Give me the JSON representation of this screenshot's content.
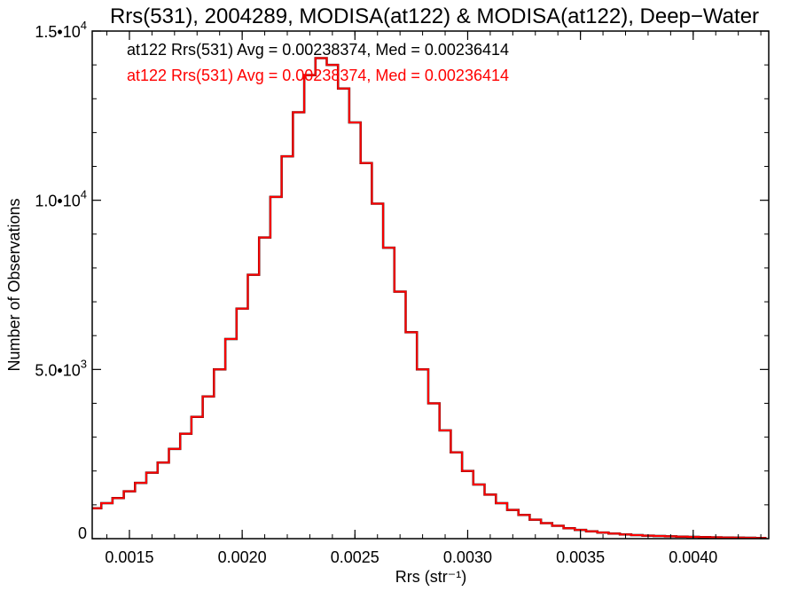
{
  "chart_data": {
    "type": "step",
    "title": "Rrs(531), 2004289, MODISA(at122) & MODISA(at122), Deep−Water",
    "xlabel": "Rrs (str⁻¹)",
    "ylabel": "Number of Observations",
    "xlim": [
      0.001335,
      0.004335
    ],
    "ylim": [
      0,
      15000
    ],
    "grid": false,
    "x_ticks": [
      {
        "value": 0.0015,
        "label": "0.0015"
      },
      {
        "value": 0.002,
        "label": "0.0020"
      },
      {
        "value": 0.0025,
        "label": "0.0025"
      },
      {
        "value": 0.003,
        "label": "0.0030"
      },
      {
        "value": 0.0035,
        "label": "0.0035"
      },
      {
        "value": 0.004,
        "label": "0.0040"
      }
    ],
    "y_ticks": [
      {
        "value": 0,
        "mantissa": "0",
        "exp": ""
      },
      {
        "value": 5000,
        "mantissa": "5.0•10",
        "exp": "3"
      },
      {
        "value": 10000,
        "mantissa": "1.0•10",
        "exp": "4"
      },
      {
        "value": 15000,
        "mantissa": "1.5•10",
        "exp": "4"
      }
    ],
    "annotations": [
      {
        "text": "at122 Rrs(531) Avg = 0.00238374, Med = 0.00236414",
        "color": "#000000"
      },
      {
        "text": "at122 Rrs(531) Avg = 0.00238374, Med = 0.00236414",
        "color": "#ff0000"
      }
    ],
    "series": [
      {
        "color": "#000000",
        "x": [
          0.00135,
          0.0014,
          0.00145,
          0.0015,
          0.00155,
          0.0016,
          0.00165,
          0.0017,
          0.00175,
          0.0018,
          0.00185,
          0.0019,
          0.00195,
          0.002,
          0.00205,
          0.0021,
          0.00215,
          0.0022,
          0.00225,
          0.0023,
          0.00235,
          0.0024,
          0.00245,
          0.0025,
          0.00255,
          0.0026,
          0.00265,
          0.0027,
          0.00275,
          0.0028,
          0.00285,
          0.0029,
          0.00295,
          0.003,
          0.00305,
          0.0031,
          0.00315,
          0.0032,
          0.00325,
          0.0033,
          0.00335,
          0.0034,
          0.00345,
          0.0035,
          0.00355,
          0.0036,
          0.00365,
          0.0037,
          0.00375,
          0.0038,
          0.00385,
          0.0039,
          0.00395,
          0.004,
          0.00405,
          0.0041,
          0.00415,
          0.0042,
          0.00425,
          0.0043
        ],
        "y": [
          900,
          1050,
          1200,
          1400,
          1650,
          1950,
          2250,
          2650,
          3100,
          3600,
          4200,
          5000,
          5900,
          6800,
          7800,
          8900,
          10100,
          11300,
          12600,
          13700,
          14200,
          14000,
          13300,
          12300,
          11100,
          9900,
          8600,
          7300,
          6100,
          5000,
          4000,
          3200,
          2550,
          2000,
          1600,
          1300,
          1050,
          850,
          700,
          560,
          460,
          380,
          310,
          260,
          215,
          180,
          150,
          125,
          105,
          90,
          78,
          68,
          60,
          52,
          45,
          40,
          35,
          30,
          26,
          20
        ]
      },
      {
        "color": "#ff0000",
        "x": [
          0.00135,
          0.0014,
          0.00145,
          0.0015,
          0.00155,
          0.0016,
          0.00165,
          0.0017,
          0.00175,
          0.0018,
          0.00185,
          0.0019,
          0.00195,
          0.002,
          0.00205,
          0.0021,
          0.00215,
          0.0022,
          0.00225,
          0.0023,
          0.00235,
          0.0024,
          0.00245,
          0.0025,
          0.00255,
          0.0026,
          0.00265,
          0.0027,
          0.00275,
          0.0028,
          0.00285,
          0.0029,
          0.00295,
          0.003,
          0.00305,
          0.0031,
          0.00315,
          0.0032,
          0.00325,
          0.0033,
          0.00335,
          0.0034,
          0.00345,
          0.0035,
          0.00355,
          0.0036,
          0.00365,
          0.0037,
          0.00375,
          0.0038,
          0.00385,
          0.0039,
          0.00395,
          0.004,
          0.00405,
          0.0041,
          0.00415,
          0.0042,
          0.00425,
          0.0043
        ],
        "y": [
          900,
          1050,
          1200,
          1400,
          1650,
          1950,
          2250,
          2650,
          3100,
          3600,
          4200,
          5000,
          5900,
          6800,
          7800,
          8900,
          10100,
          11300,
          12600,
          13700,
          14200,
          14000,
          13300,
          12300,
          11100,
          9900,
          8600,
          7300,
          6100,
          5000,
          4000,
          3200,
          2550,
          2000,
          1600,
          1300,
          1050,
          850,
          700,
          560,
          460,
          380,
          310,
          260,
          215,
          180,
          150,
          125,
          105,
          90,
          78,
          68,
          60,
          52,
          45,
          40,
          35,
          30,
          26,
          20
        ]
      }
    ]
  }
}
